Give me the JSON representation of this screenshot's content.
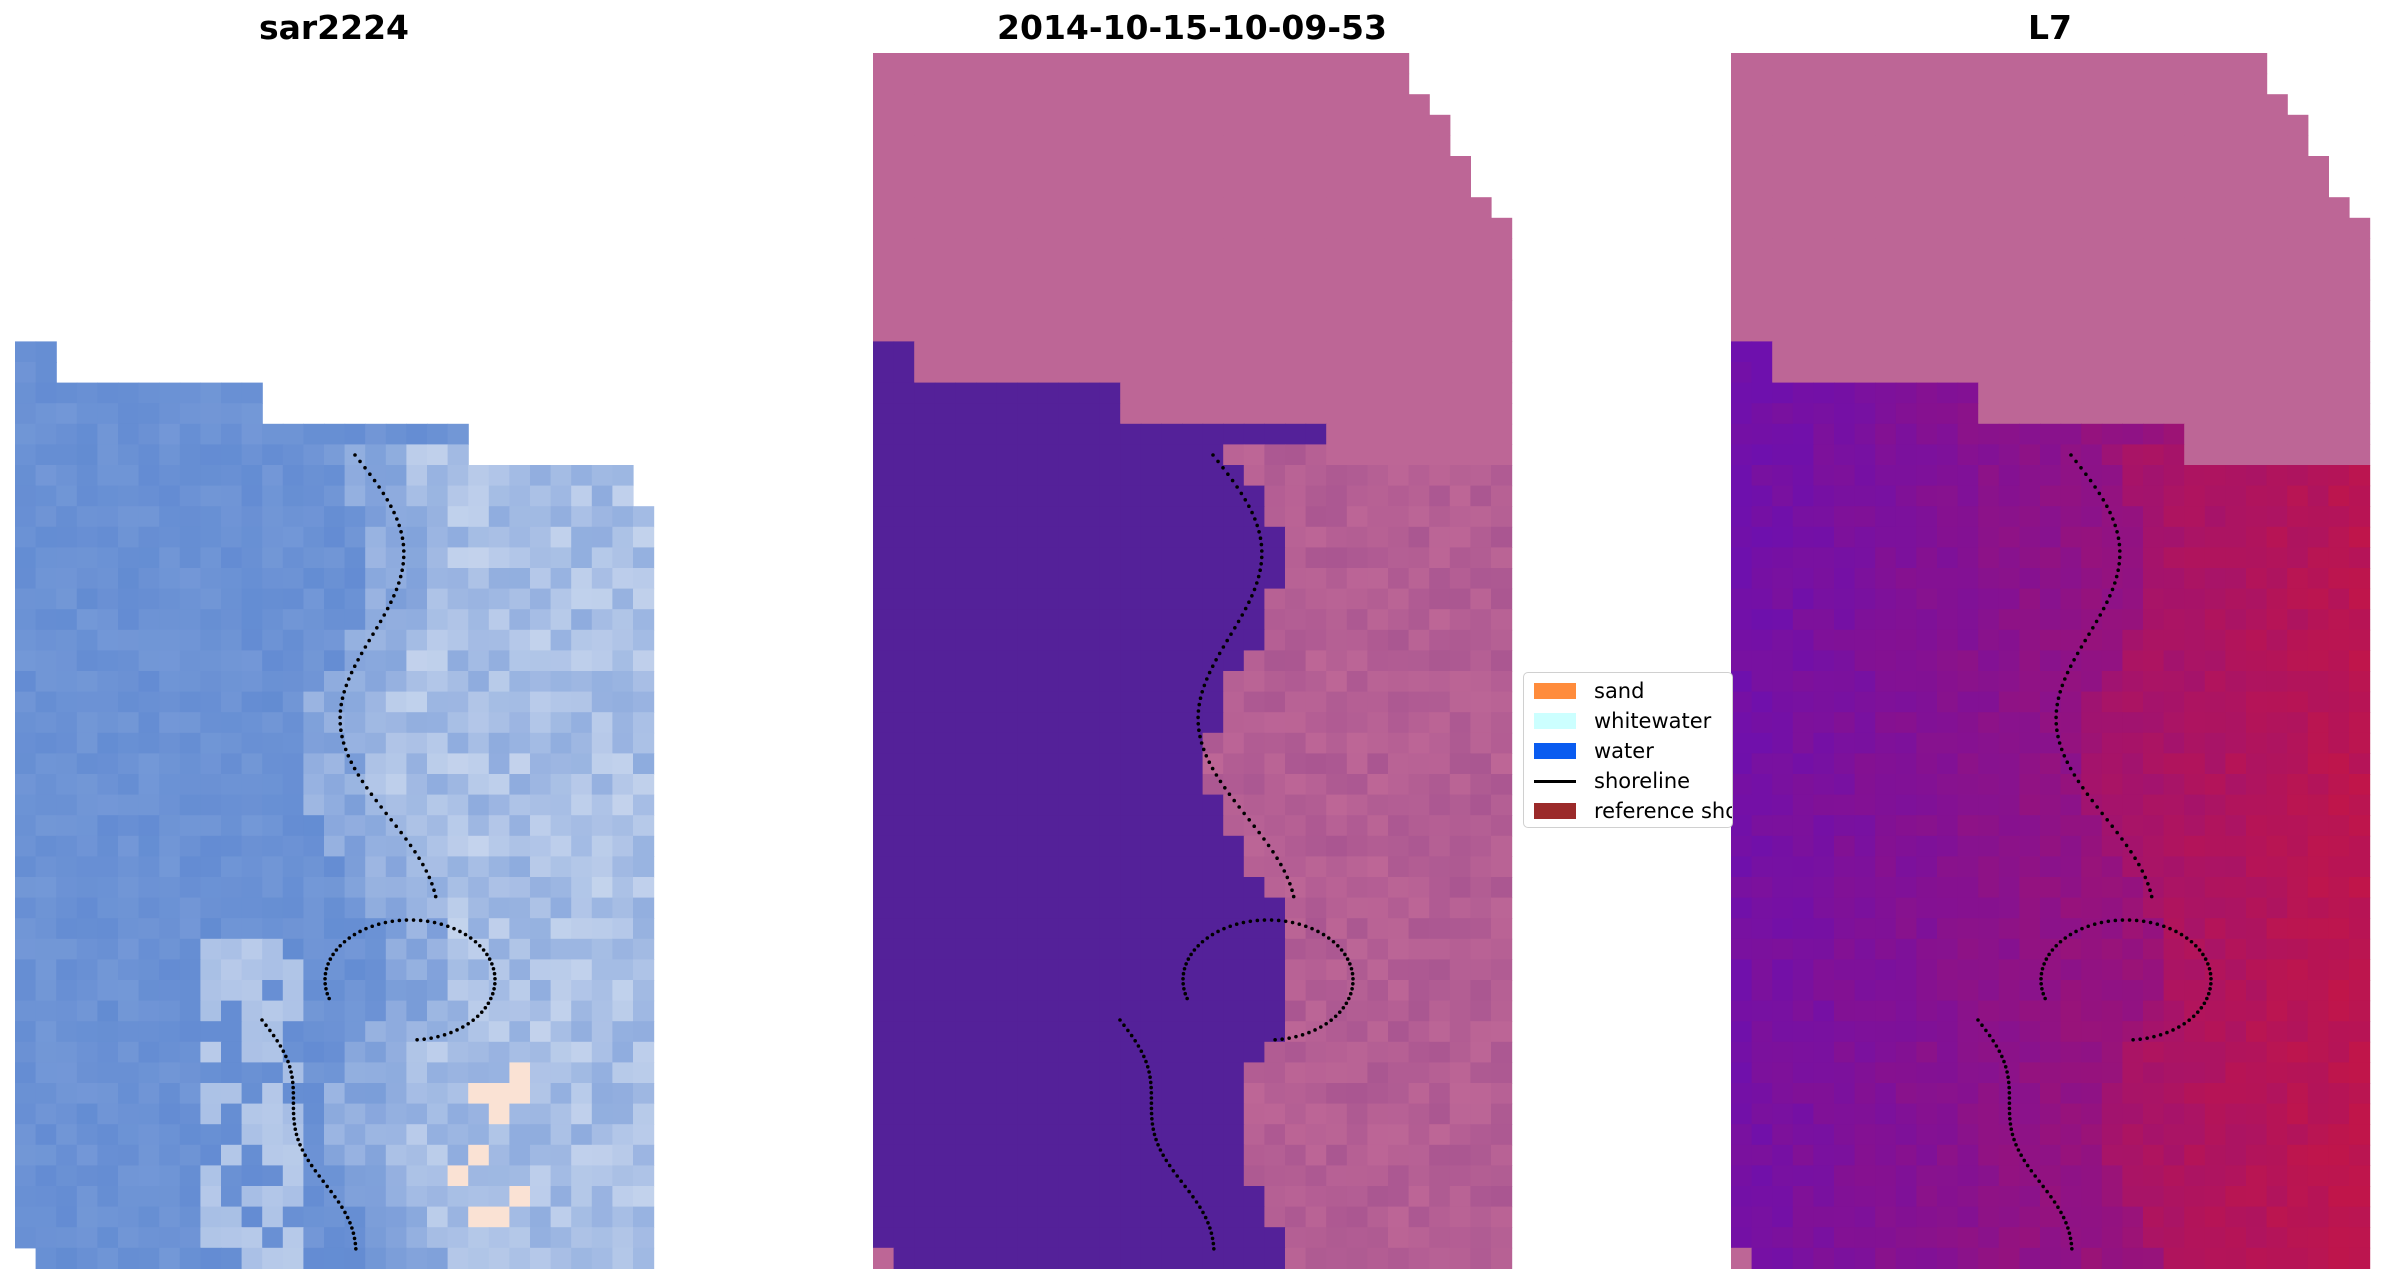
{
  "panels": [
    {
      "title": "sar2224",
      "kind": "rgb-image",
      "icon": "satellite-rgb-image"
    },
    {
      "title": "2014-10-15-10-09-53",
      "kind": "classified-image",
      "icon": "classification-map"
    },
    {
      "title": "L7",
      "kind": "index-image",
      "icon": "index-map"
    }
  ],
  "legend": {
    "items": [
      {
        "label": "sand",
        "color": "#ff8c3c",
        "type": "patch"
      },
      {
        "label": "whitewater",
        "color": "#ccffff",
        "type": "patch"
      },
      {
        "label": "water",
        "color": "#0a5cf0",
        "type": "patch"
      },
      {
        "label": "shoreline",
        "color": "#000000",
        "type": "line"
      },
      {
        "label": "reference shoreline",
        "color": "#9b2a2a",
        "type": "patch"
      }
    ]
  },
  "colors": {
    "nodata": "#bd6696",
    "class_water": "#542199",
    "rgb_water": "#5e88d1",
    "rgb_foam": "#c9d7ee",
    "index_low": "#6e10ad",
    "index_high": "#c0154a"
  }
}
